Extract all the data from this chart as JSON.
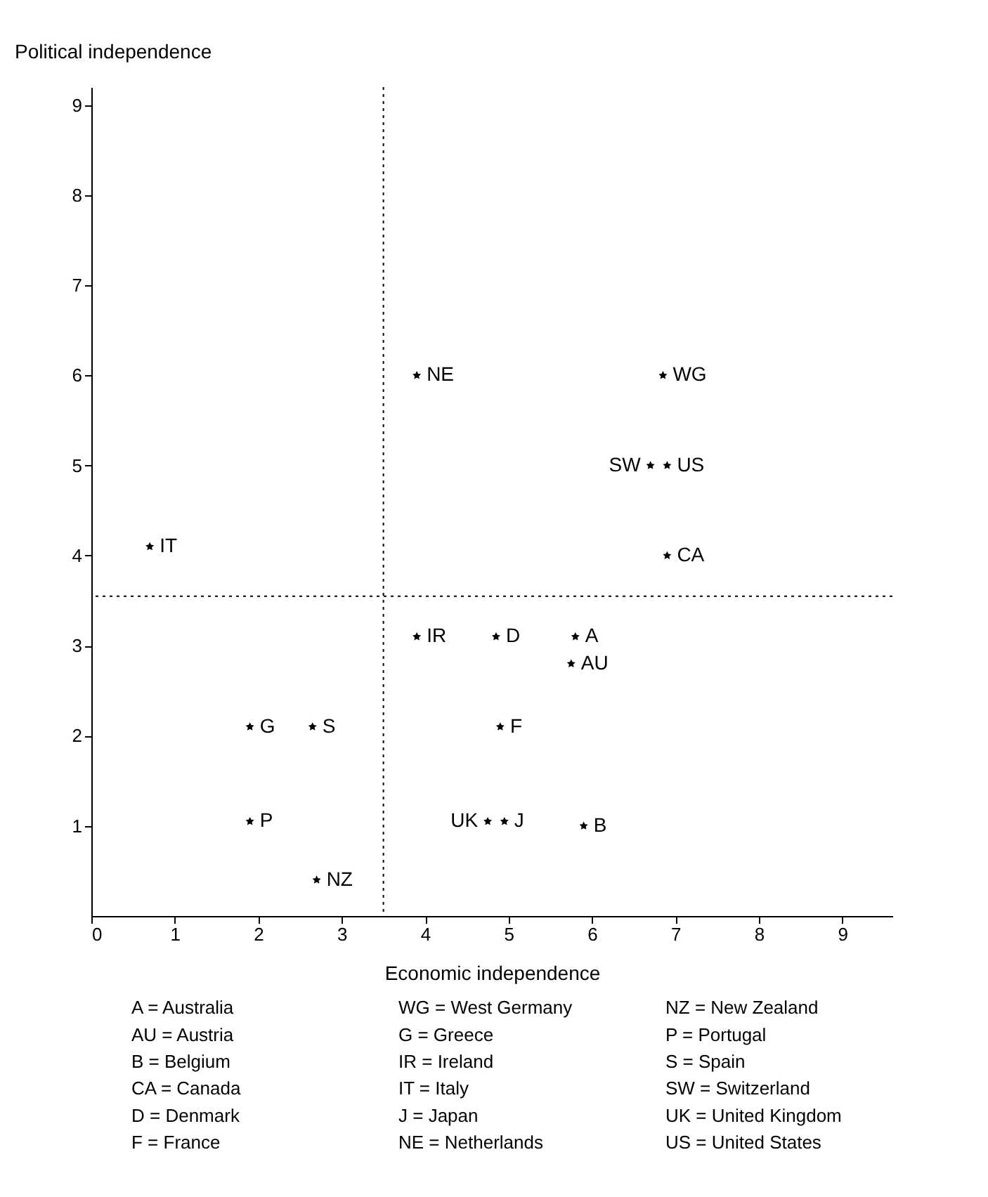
{
  "chart_data": {
    "type": "scatter",
    "xlabel": "Economic independence",
    "ylabel": "Political independence",
    "x": [
      0.7,
      3.9,
      6.85,
      6.7,
      6.9,
      6.9,
      3.9,
      4.85,
      5.8,
      5.75,
      1.9,
      2.65,
      4.9,
      1.9,
      4.75,
      4.95,
      5.9,
      2.7
    ],
    "values": [
      4.1,
      6.0,
      6.0,
      5.0,
      5.0,
      4.0,
      3.1,
      3.1,
      3.1,
      2.8,
      2.1,
      2.1,
      2.1,
      1.05,
      1.05,
      1.05,
      1.0,
      0.4
    ],
    "color": "#000000",
    "marker": "star",
    "grid": false,
    "xlim": [
      0,
      9.6
    ],
    "ylim": [
      0,
      9.2
    ],
    "xticks": [
      0,
      1,
      2,
      3,
      4,
      5,
      6,
      7,
      8,
      9
    ],
    "yticks": [
      1,
      2,
      3,
      4,
      5,
      6,
      7,
      8,
      9
    ],
    "ref_lines": [
      {
        "axis": "x",
        "value": 3.5,
        "line_style": "dotted"
      },
      {
        "axis": "y",
        "value": 3.55,
        "line_style": "dotted"
      }
    ],
    "annotations": [
      {
        "text": "IT",
        "x": 0.7,
        "y": 4.1
      },
      {
        "text": "NE",
        "x": 3.9,
        "y": 6.0
      },
      {
        "text": "WG",
        "x": 6.85,
        "y": 6.0
      },
      {
        "text": "SW",
        "x": 6.7,
        "y": 5.0
      },
      {
        "text": "US",
        "x": 6.9,
        "y": 5.0
      },
      {
        "text": "CA",
        "x": 6.9,
        "y": 4.0
      },
      {
        "text": "IR",
        "x": 3.9,
        "y": 3.1
      },
      {
        "text": "D",
        "x": 4.85,
        "y": 3.1
      },
      {
        "text": "A",
        "x": 5.8,
        "y": 3.1
      },
      {
        "text": "AU",
        "x": 5.75,
        "y": 2.8
      },
      {
        "text": "G",
        "x": 1.9,
        "y": 2.1
      },
      {
        "text": "S",
        "x": 2.65,
        "y": 2.1
      },
      {
        "text": "F",
        "x": 4.9,
        "y": 2.1
      },
      {
        "text": "P",
        "x": 1.9,
        "y": 1.05
      },
      {
        "text": "UK",
        "x": 4.75,
        "y": 1.05
      },
      {
        "text": "J",
        "x": 4.95,
        "y": 1.05
      },
      {
        "text": "B",
        "x": 5.9,
        "y": 1.0
      },
      {
        "text": "NZ",
        "x": 2.7,
        "y": 0.4
      },
      "A = Australia",
      "AU = Austria",
      "B = Belgium",
      "CA = Canada",
      "D = Denmark",
      "F = France",
      "WG = West Germany",
      "G = Greece",
      "IR = Ireland",
      "IT = Italy",
      "J = Japan",
      "NE = Netherlands",
      "NZ = New Zealand",
      "P = Portugal",
      "S = Spain",
      "SW = Switzerland",
      "UK = United Kingdom",
      "US = United States"
    ]
  }
}
